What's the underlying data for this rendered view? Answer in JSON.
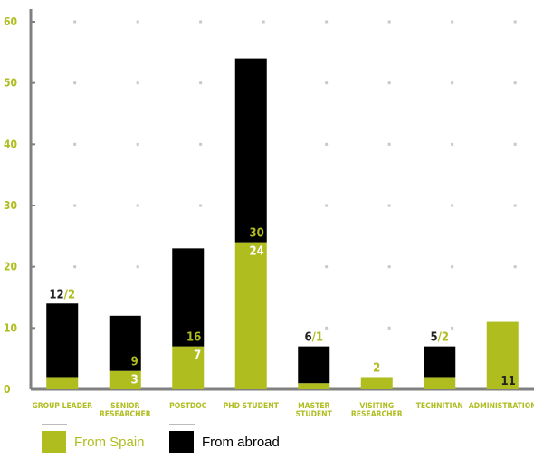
{
  "colors": {
    "spain": "#afbd1f",
    "abroad": "#000000",
    "axis": "#808080",
    "grid": "#c8c8c8"
  },
  "chart_data": {
    "type": "bar",
    "stacked": true,
    "ylim": [
      0,
      60
    ],
    "y_ticks": [
      0,
      10,
      20,
      30,
      40,
      50,
      60
    ],
    "grid": "dotted",
    "legend_position": "bottom-left",
    "categories": [
      [
        "GROUP LEADER"
      ],
      [
        "SENIOR",
        "RESEARCHER"
      ],
      [
        "POSTDOC"
      ],
      [
        "PHD STUDENT"
      ],
      [
        "MASTER",
        "STUDENT"
      ],
      [
        "VISITING",
        "RESEARCHER"
      ],
      [
        "TECHNITIAN"
      ],
      [
        "ADMINISTRATION"
      ]
    ],
    "series": [
      {
        "name": "From Spain",
        "values": [
          2,
          3,
          7,
          24,
          1,
          2,
          2,
          11
        ]
      },
      {
        "name": "From abroad",
        "values": [
          12,
          9,
          16,
          30,
          6,
          0,
          5,
          0
        ]
      }
    ],
    "annotations": [
      {
        "category": 0,
        "parts": [
          "12",
          "/",
          "2"
        ],
        "placement": "top"
      },
      {
        "category": 1,
        "parts": [
          "9",
          "",
          "3"
        ],
        "placement": "stacked"
      },
      {
        "category": 2,
        "parts": [
          "16",
          "",
          "7"
        ],
        "placement": "stacked"
      },
      {
        "category": 3,
        "parts": [
          "30",
          "",
          "24"
        ],
        "placement": "stacked"
      },
      {
        "category": 4,
        "parts": [
          "6",
          "/",
          "1"
        ],
        "placement": "top"
      },
      {
        "category": 5,
        "parts": [
          "",
          "",
          "2"
        ],
        "placement": "top-single"
      },
      {
        "category": 6,
        "parts": [
          "5",
          "/",
          "2"
        ],
        "placement": "top"
      },
      {
        "category": 7,
        "parts": [
          "",
          "",
          "11"
        ],
        "placement": "inside-bottom"
      }
    ]
  },
  "legend": {
    "spain_label": "From Spain",
    "abroad_label": "From abroad"
  }
}
